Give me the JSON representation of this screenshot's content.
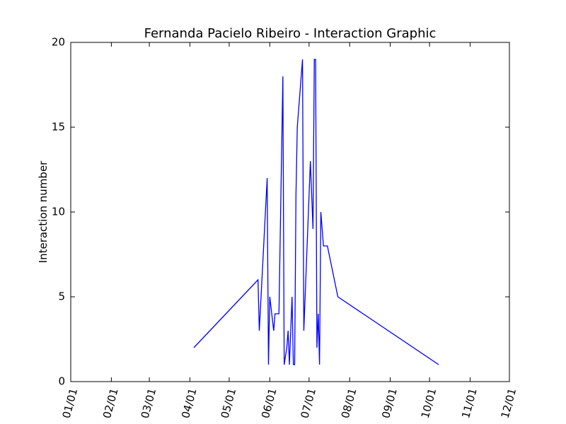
{
  "chart_data": {
    "type": "line",
    "title": "Fernanda Pacielo Ribeiro - Interaction Graphic",
    "xlabel": "",
    "ylabel": "Interaction number",
    "xlim": [
      "01/01",
      "12/01"
    ],
    "ylim": [
      0,
      20
    ],
    "x_ticks": [
      "01/01",
      "02/01",
      "03/01",
      "04/01",
      "05/01",
      "06/01",
      "07/01",
      "08/01",
      "09/01",
      "10/01",
      "11/01",
      "12/01"
    ],
    "y_ticks": [
      0,
      5,
      10,
      15,
      20
    ],
    "grid": false,
    "legend": "none",
    "line_color": "#0000ff",
    "series": [
      {
        "x": [
          "04/04",
          "05/23",
          "05/24",
          "05/30",
          "05/31",
          "06/01",
          "06/04",
          "06/05",
          "06/08",
          "06/11",
          "06/12",
          "06/14",
          "06/15",
          "06/16",
          "06/18",
          "06/19",
          "06/20",
          "06/21",
          "06/22",
          "06/24",
          "06/26",
          "06/27",
          "07/02",
          "07/04",
          "07/05",
          "07/06",
          "07/07",
          "07/08",
          "07/09",
          "07/10",
          "07/11",
          "07/12",
          "07/15",
          "07/23",
          "10/08"
        ],
        "values": [
          2,
          6,
          3,
          12,
          1,
          5,
          3,
          4,
          4,
          18,
          1,
          2,
          3,
          1,
          5,
          1,
          1,
          11,
          15,
          17,
          19,
          3,
          13,
          9,
          19,
          19,
          2,
          4,
          1,
          10,
          9,
          8,
          8,
          5,
          1
        ]
      }
    ]
  }
}
